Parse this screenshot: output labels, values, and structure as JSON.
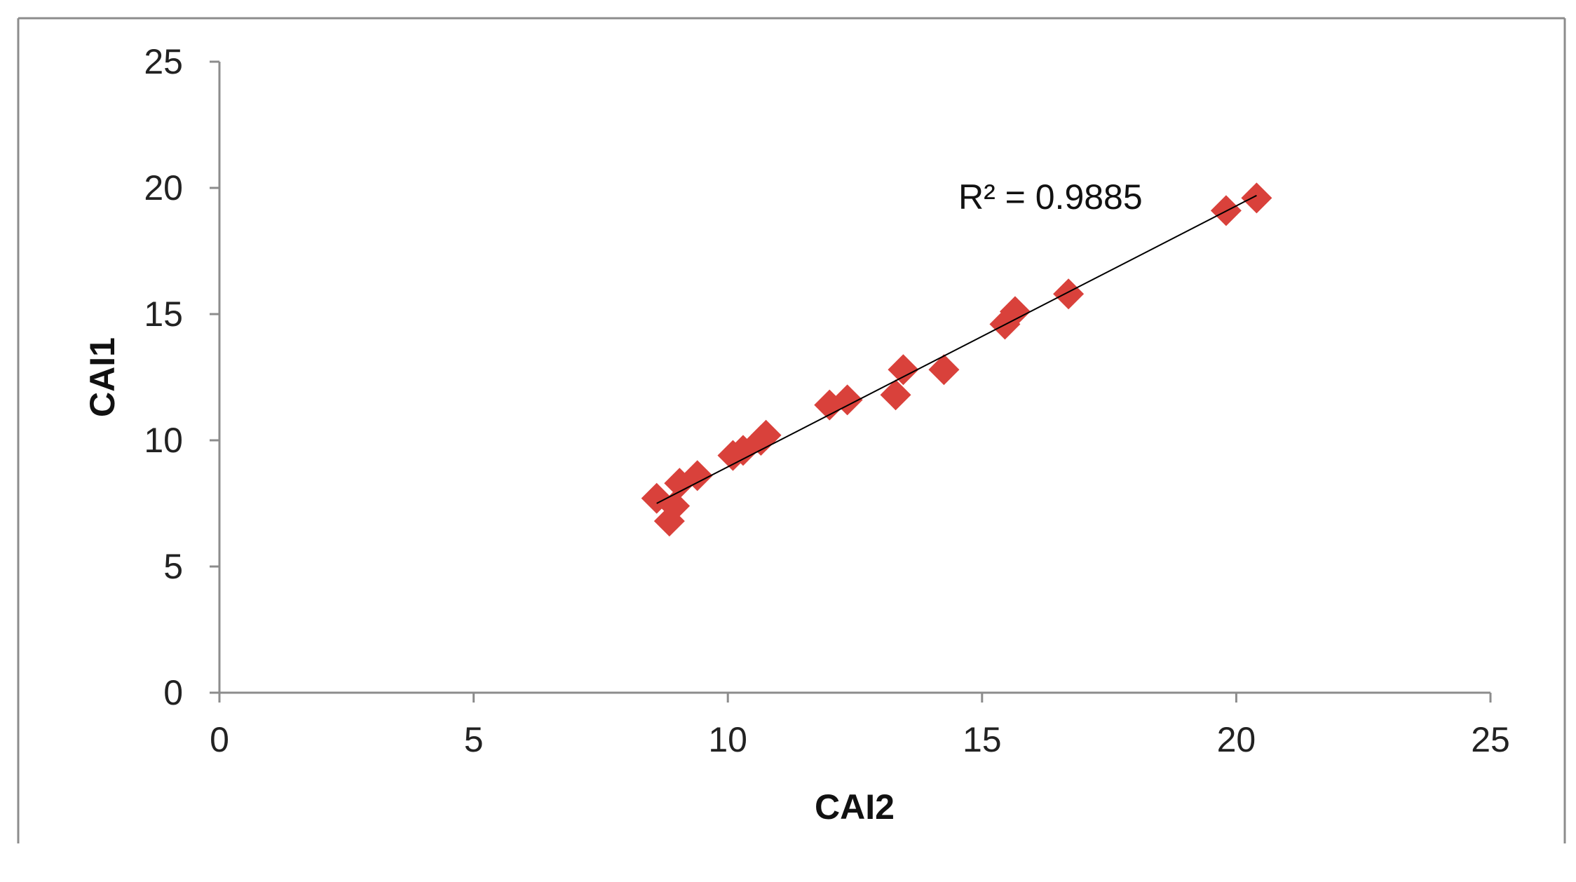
{
  "chart_data": {
    "type": "scatter",
    "xlabel": "CAI2",
    "ylabel": "CAI1",
    "xlim": [
      0,
      25
    ],
    "ylim": [
      0,
      25
    ],
    "xticks": [
      "0",
      "5",
      "10",
      "15",
      "20",
      "25"
    ],
    "yticks": [
      "0",
      "5",
      "10",
      "15",
      "20",
      "25"
    ],
    "grid": false,
    "legend": "none",
    "marker": "diamond",
    "marker_color": "#D9413B",
    "trendline_color": "#000000",
    "annotation": "R² = 0.9885",
    "trendline": {
      "type": "linear",
      "x_start": 8.6,
      "y_start": 7.5,
      "x_end": 20.4,
      "y_end": 19.7
    },
    "points": [
      {
        "x": 8.6,
        "y": 7.7
      },
      {
        "x": 8.85,
        "y": 6.8
      },
      {
        "x": 8.95,
        "y": 7.4
      },
      {
        "x": 9.05,
        "y": 8.3
      },
      {
        "x": 9.4,
        "y": 8.6
      },
      {
        "x": 10.1,
        "y": 9.4
      },
      {
        "x": 10.3,
        "y": 9.6
      },
      {
        "x": 10.65,
        "y": 10.0
      },
      {
        "x": 10.75,
        "y": 10.2
      },
      {
        "x": 12.0,
        "y": 11.4
      },
      {
        "x": 12.35,
        "y": 11.6
      },
      {
        "x": 13.3,
        "y": 11.8
      },
      {
        "x": 13.45,
        "y": 12.8
      },
      {
        "x": 14.25,
        "y": 12.8
      },
      {
        "x": 15.45,
        "y": 14.6
      },
      {
        "x": 15.65,
        "y": 15.1
      },
      {
        "x": 16.7,
        "y": 15.8
      },
      {
        "x": 19.8,
        "y": 19.1
      },
      {
        "x": 20.4,
        "y": 19.6
      }
    ]
  }
}
